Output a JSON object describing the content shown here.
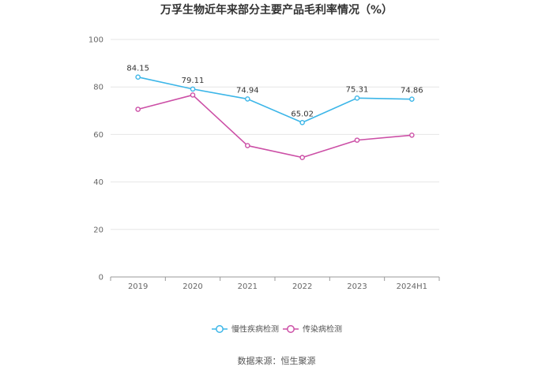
{
  "chart_data": {
    "type": "line",
    "title": "万孚生物近年来部分主要产品毛利率情况（%）",
    "categories": [
      "2019",
      "2020",
      "2021",
      "2022",
      "2023",
      "2024H1"
    ],
    "ylim": [
      0,
      100
    ],
    "yticks": [
      0,
      20,
      40,
      60,
      80,
      100
    ],
    "grid": true,
    "legend_position": "bottom",
    "series": [
      {
        "name": "慢性疾病检测",
        "color": "#3cb6e8",
        "values": [
          84.15,
          79.11,
          74.94,
          65.02,
          75.31,
          74.86
        ],
        "show_labels": true
      },
      {
        "name": "传染病检测",
        "color": "#cc4fa6",
        "values": [
          70.6,
          76.6,
          55.3,
          50.3,
          57.6,
          59.7
        ],
        "show_labels": false
      }
    ]
  },
  "source": "数据来源：恒生聚源"
}
